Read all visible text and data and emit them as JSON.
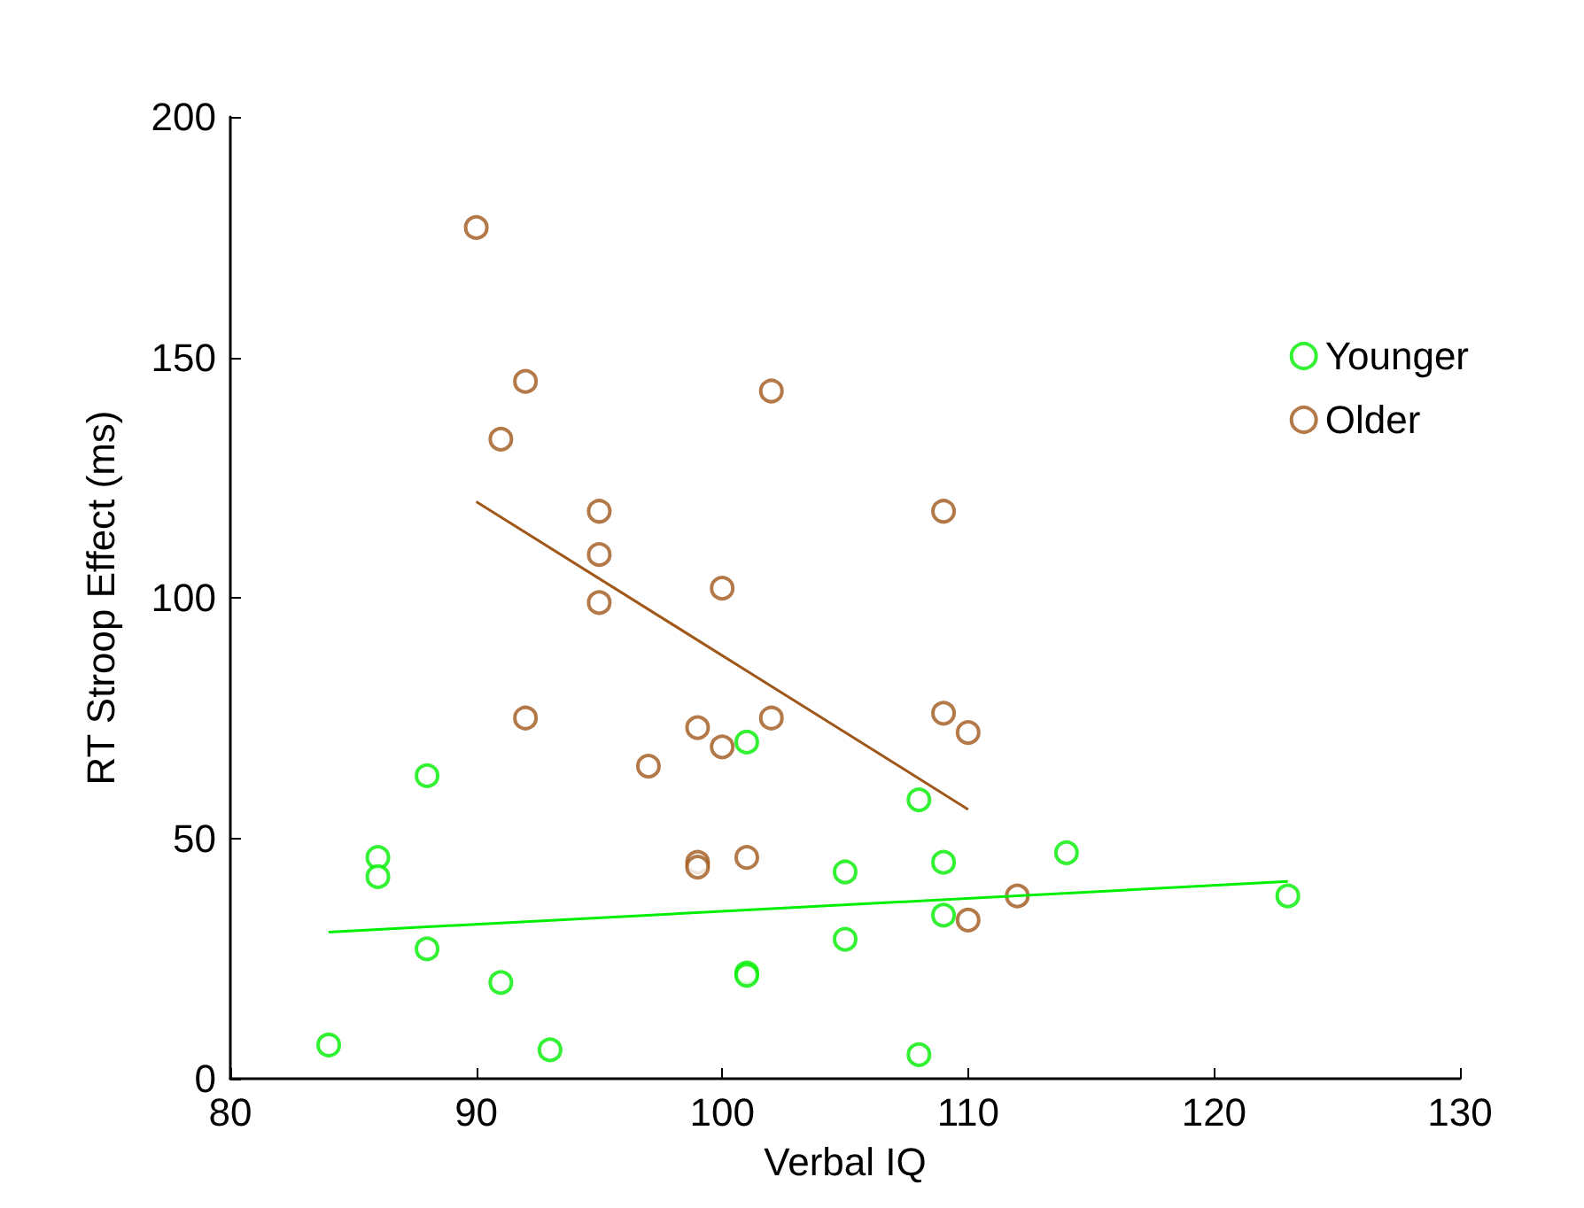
{
  "chart_data": {
    "type": "scatter",
    "xlabel": "Verbal IQ",
    "ylabel": "RT Stroop Effect (ms)",
    "xlim": [
      80,
      130
    ],
    "xticks": [
      80,
      90,
      100,
      110,
      120,
      130
    ],
    "ylim": [
      0,
      200
    ],
    "yticks": [
      0,
      50,
      100,
      150,
      200
    ],
    "grid": false,
    "legend": "top right",
    "marker": "circle",
    "series": [
      {
        "name": "Younger",
        "color": "#00ee00",
        "x": [
          84,
          86,
          86,
          88,
          88,
          91,
          93,
          101,
          101,
          101,
          105,
          105,
          108,
          108,
          109,
          109,
          114,
          123
        ],
        "values": [
          7,
          46,
          42,
          63,
          27,
          20,
          6,
          70,
          22,
          21.5,
          43,
          29,
          58,
          5,
          45,
          34,
          47,
          38
        ]
      },
      {
        "name": "Older",
        "color": "#a0581a",
        "x": [
          90,
          91,
          92,
          92,
          95,
          95,
          95,
          97,
          99,
          99,
          99,
          100,
          100,
          101,
          102,
          102,
          109,
          109,
          110,
          110,
          112
        ],
        "values": [
          177,
          133,
          145,
          75,
          118,
          109,
          99,
          65,
          73,
          45,
          44,
          102,
          69,
          46,
          143,
          75,
          118,
          76,
          72,
          33,
          38
        ]
      },
      {
        "type": "line",
        "color": "#00ee00",
        "x": [
          84,
          123
        ],
        "values": [
          30.5,
          41
        ],
        "marker": "none",
        "line_style": "solid"
      },
      {
        "type": "line",
        "color": "#a0581a",
        "x": [
          90,
          110
        ],
        "values": [
          120,
          56
        ],
        "marker": "none",
        "line_style": "solid"
      }
    ]
  }
}
